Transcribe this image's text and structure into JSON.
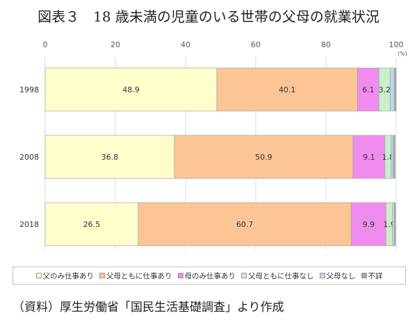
{
  "title": "図表３　18 歳未満の児童のいる世帯の父母の就業状況",
  "source": "（資料）厚生労働省「国民生活基礎調査」より作成",
  "chart_data": {
    "type": "bar",
    "orientation": "horizontal",
    "stacked": true,
    "categories": [
      "1998",
      "2008",
      "2018"
    ],
    "series": [
      {
        "name": "父のみ仕事あり",
        "color": "#ffffcc",
        "values": [
          48.9,
          36.8,
          26.5
        ],
        "labels": [
          "48.9",
          "36.8",
          "26.5"
        ]
      },
      {
        "name": "父母ともに仕事あり",
        "color": "#fbc596",
        "values": [
          40.1,
          50.9,
          60.7
        ],
        "labels": [
          "40.1",
          "50.9",
          "60.7"
        ]
      },
      {
        "name": "母のみ仕事あり",
        "color": "#f08cf0",
        "values": [
          6.1,
          9.1,
          9.9
        ],
        "labels": [
          "6.1",
          "9.1",
          "9.9"
        ]
      },
      {
        "name": "父母ともに仕事なし",
        "color": "#c9f0c9",
        "values": [
          3.2,
          1.8,
          1.9
        ],
        "labels": [
          "3.2",
          "1.8",
          "1.9"
        ]
      },
      {
        "name": "父母なし",
        "color": "#bdd7ee",
        "values": [
          1.2,
          0.6,
          0.5
        ],
        "labels": [
          "",
          "",
          ""
        ]
      },
      {
        "name": "不詳",
        "color": "#a6a6a6",
        "values": [
          0.5,
          0.5,
          0.3
        ],
        "labels": [
          "",
          "",
          ""
        ]
      }
    ],
    "xlim": [
      0,
      100
    ],
    "xticks": [
      "0",
      "20",
      "40",
      "60",
      "80",
      "100"
    ],
    "unit": "(%)",
    "grid": true,
    "legend_position": "bottom"
  }
}
